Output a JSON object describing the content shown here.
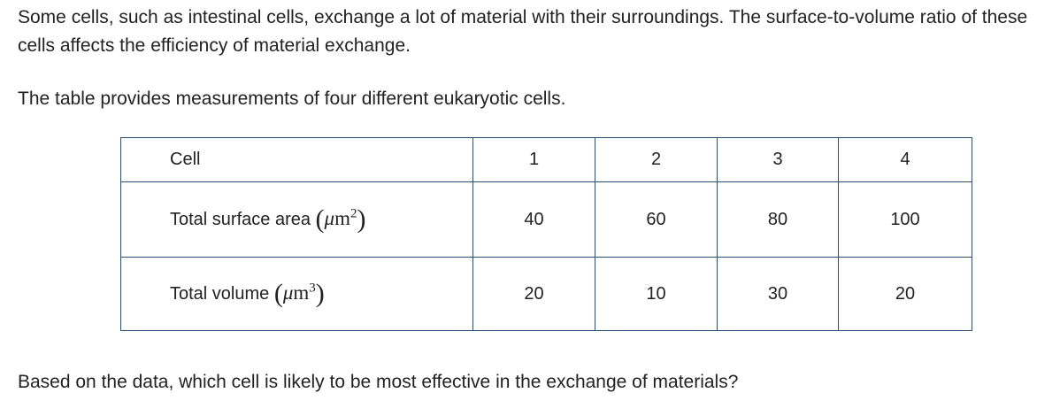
{
  "intro": "Some cells, such as intestinal cells, exchange a lot of material with their surroundings. The surface-to-volume ratio of these cells affects the efficiency of material exchange.",
  "table_intro": "The table provides measurements of four different eukaryotic cells.",
  "table": {
    "header": {
      "label": "Cell",
      "values": [
        "1",
        "2",
        "3",
        "4"
      ]
    },
    "rows": [
      {
        "label": "Total surface area",
        "unit_exp": "2",
        "values": [
          "40",
          "60",
          "80",
          "100"
        ]
      },
      {
        "label": "Total volume",
        "unit_exp": "3",
        "values": [
          "20",
          "10",
          "30",
          "20"
        ]
      }
    ],
    "unit_mu": "μ",
    "unit_m": "m"
  },
  "question": "Based on the data, which cell is likely to be most effective in the exchange of materials?"
}
